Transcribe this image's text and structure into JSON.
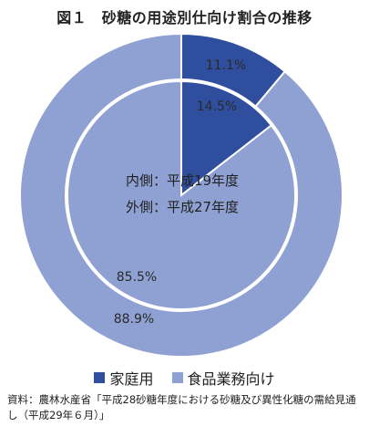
{
  "title": "図１　砂糖の用途別仕向け割合の推移",
  "chart_data": {
    "type": "pie",
    "subtype": "double-donut",
    "categories": [
      "家庭用",
      "食品業務向け"
    ],
    "colors": {
      "家庭用": "#2f4f9e",
      "食品業務向け": "#8fa1d3"
    },
    "series": [
      {
        "ring": "inner",
        "values": [
          14.5,
          85.5
        ],
        "labels": [
          "14.5%",
          "85.5%"
        ]
      },
      {
        "ring": "outer",
        "values": [
          11.1,
          88.9
        ],
        "labels": [
          "11.1%",
          "88.9%"
        ]
      }
    ],
    "center_text": [
      "内側：平成19年度",
      "外側：平成27年度"
    ],
    "legend": {
      "position": "bottom",
      "entries": [
        "家庭用",
        "食品業務向け"
      ]
    }
  },
  "source": "資料：農林水産省「平成28砂糖年度における砂糖及び異性化糖の需給見通し（平成29年６月）」"
}
